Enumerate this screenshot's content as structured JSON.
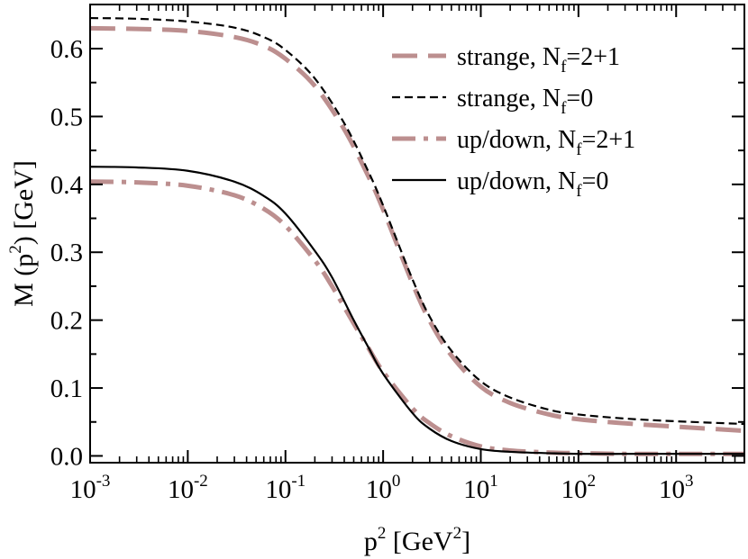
{
  "chart_data": {
    "type": "line",
    "title": "",
    "xlabel": {
      "base": "p",
      "sup": "2",
      "rest": " [GeV",
      "unit_sup": "2",
      "close": "]"
    },
    "ylabel": {
      "prefix": "M (p",
      "sup": "2",
      "suffix": ") [GeV]"
    },
    "x_scale": "log",
    "xlim": [
      0.001,
      5000
    ],
    "ylim": [
      -0.01,
      0.665
    ],
    "grid": false,
    "legend_position": "top-right",
    "x_ticks": [
      {
        "value": 0.001,
        "base": "10",
        "exp": "-3"
      },
      {
        "value": 0.01,
        "base": "10",
        "exp": "-2"
      },
      {
        "value": 0.1,
        "base": "10",
        "exp": "-1"
      },
      {
        "value": 1,
        "base": "10",
        "exp": "0"
      },
      {
        "value": 10,
        "base": "10",
        "exp": "1"
      },
      {
        "value": 100,
        "base": "10",
        "exp": "2"
      },
      {
        "value": 1000,
        "base": "10",
        "exp": "3"
      }
    ],
    "y_ticks": [
      {
        "value": 0.0,
        "label": "0.0"
      },
      {
        "value": 0.1,
        "label": "0.1"
      },
      {
        "value": 0.2,
        "label": "0.2"
      },
      {
        "value": 0.3,
        "label": "0.3"
      },
      {
        "value": 0.4,
        "label": "0.4"
      },
      {
        "value": 0.5,
        "label": "0.5"
      },
      {
        "value": 0.6,
        "label": "0.6"
      }
    ],
    "series": [
      {
        "name": "strange, Nf=2+1",
        "label_main": "strange, N",
        "label_sub": "f",
        "label_tail": "=2+1",
        "color": "#bc8f8f",
        "dash": "long-dash",
        "x": [
          0.001,
          0.003,
          0.01,
          0.03,
          0.06,
          0.1,
          0.2,
          0.4,
          0.7,
          1,
          2,
          3,
          5,
          10,
          20,
          50,
          100,
          300,
          1000,
          5000
        ],
        "y": [
          0.63,
          0.629,
          0.626,
          0.617,
          0.604,
          0.585,
          0.545,
          0.481,
          0.413,
          0.363,
          0.254,
          0.199,
          0.148,
          0.102,
          0.078,
          0.061,
          0.054,
          0.048,
          0.043,
          0.037
        ]
      },
      {
        "name": "strange, Nf=0",
        "label_main": "strange, N",
        "label_sub": "f",
        "label_tail": "=0",
        "color": "#000000",
        "dash": "short-dash",
        "x": [
          0.001,
          0.003,
          0.01,
          0.03,
          0.06,
          0.1,
          0.2,
          0.4,
          0.7,
          1,
          2,
          3,
          5,
          10,
          20,
          50,
          100,
          300,
          1000,
          5000
        ],
        "y": [
          0.645,
          0.644,
          0.64,
          0.631,
          0.617,
          0.598,
          0.556,
          0.49,
          0.42,
          0.369,
          0.26,
          0.205,
          0.155,
          0.11,
          0.086,
          0.068,
          0.061,
          0.055,
          0.051,
          0.047
        ]
      },
      {
        "name": "up/down, Nf=2+1",
        "label_main": "up/down, N",
        "label_sub": "f",
        "label_tail": "=2+1",
        "color": "#bc8f8f",
        "dash": "dash-dot",
        "x": [
          0.001,
          0.003,
          0.01,
          0.03,
          0.06,
          0.1,
          0.2,
          0.3,
          0.5,
          0.7,
          1,
          2,
          3,
          5,
          10,
          20,
          50,
          100,
          300,
          1000,
          5000
        ],
        "y": [
          0.404,
          0.403,
          0.398,
          0.384,
          0.364,
          0.339,
          0.288,
          0.25,
          0.195,
          0.16,
          0.124,
          0.07,
          0.048,
          0.029,
          0.014,
          0.008,
          0.005,
          0.004,
          0.003,
          0.003,
          0.003
        ]
      },
      {
        "name": "up/down, Nf=0",
        "label_main": "up/down, N",
        "label_sub": "f",
        "label_tail": "=0",
        "color": "#000000",
        "dash": "solid",
        "x": [
          0.001,
          0.003,
          0.01,
          0.03,
          0.06,
          0.1,
          0.2,
          0.3,
          0.5,
          0.7,
          1,
          2,
          3,
          5,
          10,
          20,
          50,
          100,
          300,
          1000,
          5000
        ],
        "y": [
          0.426,
          0.425,
          0.42,
          0.404,
          0.383,
          0.357,
          0.302,
          0.263,
          0.2,
          0.161,
          0.121,
          0.063,
          0.04,
          0.022,
          0.01,
          0.006,
          0.004,
          0.003,
          0.003,
          0.003,
          0.003
        ]
      }
    ]
  }
}
